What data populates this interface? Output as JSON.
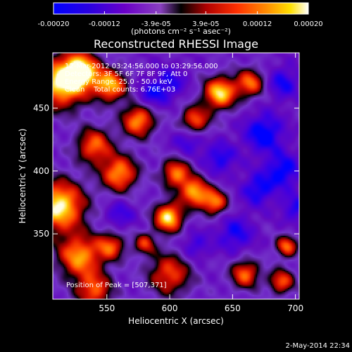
{
  "colorbar": {
    "tick_labels": [
      "-0.00020",
      "-0.00012",
      "-3.9e-05",
      "3.9e-05",
      "0.00012",
      "0.00020"
    ],
    "tick_values": [
      -0.0002,
      -0.00012,
      -3.9e-05,
      3.9e-05,
      0.00012,
      0.0002
    ],
    "range": [
      -0.0002,
      0.0002
    ],
    "units_label": "(photons cm⁻² s⁻¹ asec⁻²)"
  },
  "title": "Reconstructed RHESSI Image",
  "annotations": {
    "time_range": "12-Mar-2012 03:24:56.000 to 03:29:56.000",
    "detectors": "Detectors: 3F 5F 6F 7F 8F 9F, Att 0",
    "energy_range": "Energy Range: 25.0 - 50.0 keV",
    "method_counts": "Clean    Total counts: 6.76E+03",
    "peak_position": "Position of Peak = [507,371]"
  },
  "footer_date": "2-May-2014 22:34",
  "chart_data": {
    "type": "heatmap",
    "title": "Reconstructed RHESSI Image",
    "xlabel": "Heliocentric X (arcsec)",
    "ylabel": "Heliocentric Y (arcsec)",
    "xlim": [
      507,
      703
    ],
    "ylim": [
      298,
      494
    ],
    "x_ticks": [
      550,
      600,
      650,
      700
    ],
    "x_tick_labels": [
      "550",
      "600",
      "650",
      "700"
    ],
    "y_ticks": [
      350,
      400,
      450
    ],
    "y_tick_labels": [
      "350",
      "400",
      "450"
    ],
    "peak": [
      507,
      371
    ],
    "colormap": [
      "#0000ff",
      "#5a00b4",
      "#7030c8",
      "#000000",
      "#b00000",
      "#ff3000",
      "#ff8c00",
      "#ffd000",
      "#ffffff"
    ],
    "blobs": [
      {
        "x": 512,
        "y": 372,
        "v": 1.0,
        "s": 14
      },
      {
        "x": 514,
        "y": 470,
        "v": 0.95,
        "s": 14
      },
      {
        "x": 530,
        "y": 480,
        "v": 0.8,
        "s": 10
      },
      {
        "x": 553,
        "y": 468,
        "v": 0.75,
        "s": 9
      },
      {
        "x": 575,
        "y": 440,
        "v": 0.7,
        "s": 9
      },
      {
        "x": 560,
        "y": 398,
        "v": 0.7,
        "s": 10
      },
      {
        "x": 540,
        "y": 420,
        "v": 0.55,
        "s": 10
      },
      {
        "x": 605,
        "y": 398,
        "v": 0.6,
        "s": 8
      },
      {
        "x": 620,
        "y": 383,
        "v": 0.75,
        "s": 8
      },
      {
        "x": 599,
        "y": 363,
        "v": 0.95,
        "s": 8
      },
      {
        "x": 640,
        "y": 462,
        "v": 0.9,
        "s": 9
      },
      {
        "x": 620,
        "y": 440,
        "v": 0.55,
        "s": 8
      },
      {
        "x": 664,
        "y": 470,
        "v": 0.55,
        "s": 8
      },
      {
        "x": 636,
        "y": 375,
        "v": 0.6,
        "s": 7
      },
      {
        "x": 528,
        "y": 332,
        "v": 0.7,
        "s": 12
      },
      {
        "x": 553,
        "y": 340,
        "v": 0.45,
        "s": 8
      },
      {
        "x": 600,
        "y": 318,
        "v": 0.45,
        "s": 12
      },
      {
        "x": 660,
        "y": 318,
        "v": 0.55,
        "s": 8
      },
      {
        "x": 689,
        "y": 312,
        "v": 0.5,
        "s": 7
      },
      {
        "x": 693,
        "y": 340,
        "v": 0.55,
        "s": 6
      },
      {
        "x": 540,
        "y": 305,
        "v": 0.5,
        "s": 10
      },
      {
        "x": 580,
        "y": 342,
        "v": 0.35,
        "s": 6
      },
      {
        "x": 652,
        "y": 350,
        "v": -0.5,
        "s": 10
      },
      {
        "x": 675,
        "y": 430,
        "v": -0.65,
        "s": 11
      },
      {
        "x": 690,
        "y": 400,
        "v": -0.6,
        "s": 10
      },
      {
        "x": 670,
        "y": 385,
        "v": -0.55,
        "s": 9
      },
      {
        "x": 640,
        "y": 410,
        "v": -0.5,
        "s": 9
      },
      {
        "x": 615,
        "y": 425,
        "v": -0.45,
        "s": 8
      },
      {
        "x": 585,
        "y": 460,
        "v": -0.45,
        "s": 8
      },
      {
        "x": 600,
        "y": 470,
        "v": -0.45,
        "s": 9
      },
      {
        "x": 560,
        "y": 365,
        "v": -0.4,
        "s": 8
      },
      {
        "x": 620,
        "y": 340,
        "v": -0.4,
        "s": 8
      },
      {
        "x": 690,
        "y": 470,
        "v": -0.5,
        "s": 9
      },
      {
        "x": 700,
        "y": 370,
        "v": -0.45,
        "s": 8
      }
    ]
  }
}
